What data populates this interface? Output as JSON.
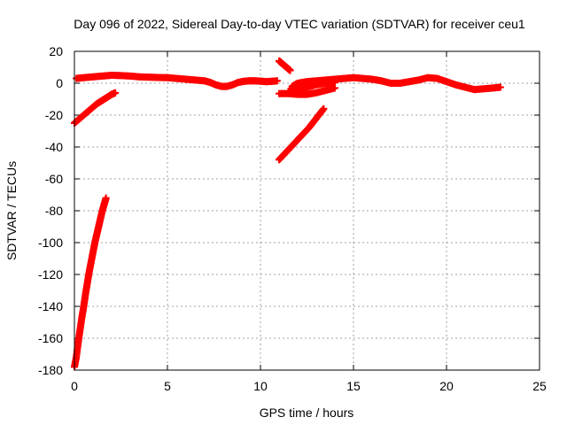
{
  "chart_data": {
    "type": "scatter",
    "title": "Day 096 of 2022, Sidereal Day-to-day VTEC variation (SDTVAR) for receiver ceu1",
    "xlabel": "GPS time / hours",
    "ylabel": "SDTVAR / TECUs",
    "xlim": [
      0,
      25
    ],
    "ylim": [
      -180,
      20
    ],
    "xticks": [
      "0",
      "5",
      "10",
      "15",
      "20",
      "25"
    ],
    "yticks": [
      "20",
      "0",
      "-20",
      "-40",
      "-60",
      "-80",
      "-100",
      "-120",
      "-140",
      "-160",
      "-180"
    ],
    "grid": true,
    "marker": "+",
    "color": "#ff0000",
    "segments": [
      {
        "x": [
          0.0,
          0.1,
          0.2,
          0.3,
          0.4,
          0.5,
          0.6,
          0.7,
          0.8,
          0.9,
          1.0,
          1.1,
          1.2,
          1.3,
          1.4,
          1.5,
          1.6,
          1.7
        ],
        "y": [
          -178,
          -172,
          -163,
          -155,
          -147,
          -140,
          -132,
          -125,
          -118,
          -112,
          -106,
          -100,
          -95,
          -90,
          -85,
          -80,
          -76,
          -72
        ]
      },
      {
        "x": [
          0.0,
          0.2,
          0.4,
          0.6,
          0.8,
          1.0,
          1.2,
          1.4,
          1.6,
          1.8,
          2.0,
          2.2
        ],
        "y": [
          -25,
          -23,
          -21,
          -19,
          -17,
          -15,
          -13,
          -11.5,
          -10,
          -8.5,
          -7,
          -6
        ]
      },
      {
        "x": [
          0.1,
          0.5,
          1,
          1.5,
          2,
          2.5,
          3,
          3.5,
          4,
          4.5,
          5,
          5.5,
          6,
          6.5,
          7,
          7.3,
          7.6,
          7.9,
          8.2,
          8.5,
          8.8,
          9.1,
          9.4,
          9.7,
          10,
          10.3,
          10.6,
          10.9
        ],
        "y": [
          3,
          3.5,
          4,
          4.5,
          5,
          4.8,
          4.5,
          4,
          3.8,
          3.6,
          3.5,
          3,
          2.5,
          2,
          1.5,
          0.5,
          -1,
          -2,
          -2,
          -1,
          0.5,
          1.2,
          1.5,
          1.5,
          1.3,
          1,
          1.2,
          1.5
        ]
      },
      {
        "x": [
          11.0,
          11.1,
          11.2,
          11.3,
          11.4,
          11.5,
          11.6
        ],
        "y": [
          14,
          13,
          12,
          11,
          10,
          9,
          8
        ]
      },
      {
        "x": [
          11.0,
          11.5,
          12.0,
          12.5,
          13.0,
          13.5,
          14.0
        ],
        "y": [
          -6.5,
          -6.5,
          -7,
          -7,
          -6,
          -4.5,
          -3
        ]
      },
      {
        "x": [
          11.0,
          11.2,
          11.4,
          11.6,
          11.8,
          12.0,
          12.2,
          12.4,
          12.6,
          12.8,
          13.0,
          13.2,
          13.4
        ],
        "y": [
          -48,
          -45.5,
          -43,
          -40.5,
          -38,
          -35.5,
          -33,
          -30.5,
          -28,
          -25,
          -22,
          -19,
          -16
        ]
      },
      {
        "x": [
          11.7,
          12.0,
          12.5,
          13.0,
          13.5,
          14.0,
          14.5,
          15.0,
          15.5,
          16.0,
          16.5,
          17.0,
          17.5,
          18.0,
          18.5,
          19.0,
          19.5,
          20.0,
          20.5,
          21.0,
          21.5,
          22.0,
          22.5,
          22.9
        ],
        "y": [
          -2,
          0,
          1,
          1.5,
          2,
          2.5,
          3,
          3.5,
          3,
          2.5,
          1.5,
          0,
          0,
          1,
          2,
          3.5,
          3,
          1,
          -1,
          -2.5,
          -4,
          -3.5,
          -3,
          -2.5
        ]
      },
      {
        "x": [
          11.5,
          12.0,
          12.5,
          13.0,
          13.5,
          14.0
        ],
        "y": [
          -5,
          -4,
          -2.5,
          -1,
          0,
          0.5
        ]
      }
    ]
  }
}
